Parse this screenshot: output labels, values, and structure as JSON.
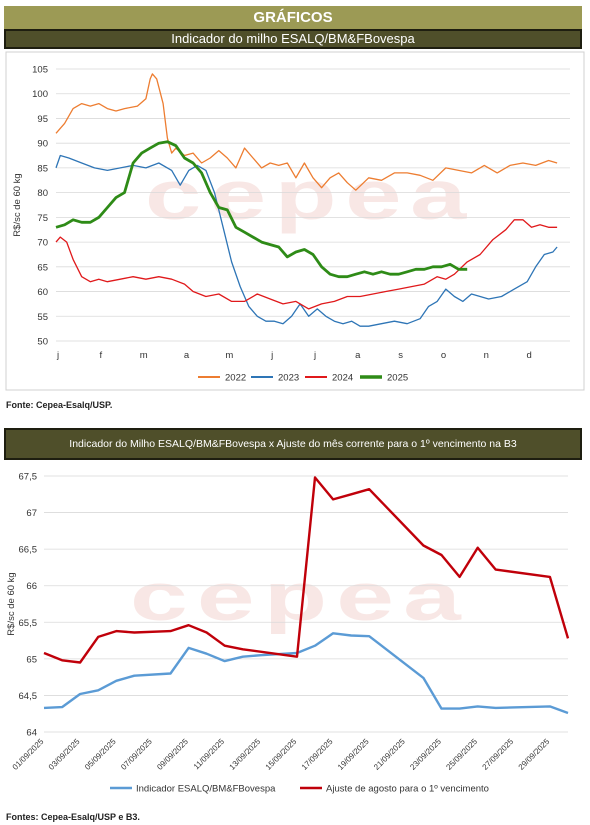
{
  "header": {
    "title": "GRÁFICOS"
  },
  "colors": {
    "band": "#9c9a55",
    "head": "#4f4f2a",
    "grid": "#d9d9d9",
    "s2022": "#ed7d31",
    "s2023": "#2e75b6",
    "s2024": "#e0191b",
    "s2025": "#2e8b17",
    "indicator": "#5b9bd5",
    "adjustment": "#c0000a",
    "watermark": "#f2d3cf"
  },
  "watermark": "cepea",
  "chart_data": [
    {
      "type": "line",
      "title": "Indicador do milho ESALQ/BM&FBovespa",
      "ylabel": "R$/sc de 60 kg",
      "ylim": [
        50,
        105
      ],
      "yticks": [
        50,
        55,
        60,
        65,
        70,
        75,
        80,
        85,
        90,
        95,
        100,
        105
      ],
      "categories": [
        "j",
        "f",
        "m",
        "a",
        "m",
        "j",
        "j",
        "a",
        "s",
        "o",
        "n",
        "d"
      ],
      "xlim": [
        0,
        12
      ],
      "grid": true,
      "legend": "bottom",
      "series": [
        {
          "name": "2022",
          "x": [
            0,
            0.2,
            0.4,
            0.6,
            0.8,
            1.0,
            1.2,
            1.4,
            1.6,
            1.9,
            2.1,
            2.2,
            2.25,
            2.35,
            2.5,
            2.6,
            2.7,
            2.8,
            3.0,
            3.2,
            3.4,
            3.6,
            3.8,
            4.0,
            4.2,
            4.4,
            4.6,
            4.8,
            5.0,
            5.2,
            5.4,
            5.6,
            5.8,
            6.0,
            6.2,
            6.4,
            6.6,
            6.8,
            7.0,
            7.3,
            7.6,
            7.9,
            8.2,
            8.5,
            8.8,
            9.1,
            9.4,
            9.7,
            10.0,
            10.3,
            10.6,
            10.9,
            11.2,
            11.5,
            11.7
          ],
          "values": [
            92,
            94,
            97,
            98,
            97.5,
            98,
            97,
            96.5,
            97,
            97.5,
            99,
            103,
            104,
            103,
            98,
            91,
            88,
            89,
            87.5,
            88,
            86,
            87,
            88.5,
            87,
            85,
            89,
            87,
            85,
            86,
            85.5,
            86,
            83,
            86,
            83,
            81,
            83,
            84,
            82,
            80.5,
            83,
            82.5,
            84,
            84,
            83.5,
            82.5,
            85,
            84.5,
            84,
            85.5,
            84,
            85.5,
            86,
            85.5,
            86.5,
            86
          ]
        },
        {
          "name": "2023",
          "x": [
            0,
            0.1,
            0.3,
            0.6,
            0.9,
            1.2,
            1.5,
            1.8,
            2.1,
            2.4,
            2.7,
            2.9,
            3.1,
            3.3,
            3.5,
            3.7,
            3.9,
            4.1,
            4.3,
            4.5,
            4.7,
            4.9,
            5.1,
            5.3,
            5.5,
            5.7,
            5.9,
            6.1,
            6.3,
            6.5,
            6.7,
            6.9,
            7.1,
            7.3,
            7.6,
            7.9,
            8.2,
            8.5,
            8.7,
            8.9,
            9.1,
            9.3,
            9.5,
            9.7,
            9.9,
            10.1,
            10.4,
            10.7,
            11.0,
            11.2,
            11.4,
            11.6,
            11.7
          ],
          "values": [
            85,
            87.5,
            87,
            86,
            85,
            84.5,
            85,
            85.5,
            85,
            86,
            84.5,
            81.5,
            84.5,
            85.5,
            84.5,
            80,
            73,
            66,
            61,
            57,
            55,
            54,
            54,
            53.5,
            55,
            57.5,
            55,
            56.5,
            55,
            54,
            53.5,
            54,
            53,
            53,
            53.5,
            54,
            53.5,
            54.5,
            57,
            58,
            60.5,
            59,
            58,
            59.5,
            59,
            58.5,
            59,
            60.5,
            62,
            65,
            67.5,
            68,
            69
          ]
        },
        {
          "name": "2024",
          "x": [
            0,
            0.1,
            0.25,
            0.4,
            0.6,
            0.8,
            1.0,
            1.2,
            1.5,
            1.8,
            2.1,
            2.4,
            2.7,
            3.0,
            3.2,
            3.5,
            3.8,
            4.1,
            4.4,
            4.7,
            5.0,
            5.3,
            5.6,
            5.9,
            6.2,
            6.5,
            6.8,
            7.1,
            7.4,
            7.7,
            8.0,
            8.3,
            8.6,
            8.9,
            9.1,
            9.3,
            9.6,
            9.9,
            10.2,
            10.5,
            10.7,
            10.9,
            11.1,
            11.3,
            11.5,
            11.7
          ],
          "values": [
            70,
            71,
            70,
            66.5,
            63,
            62,
            62.5,
            62,
            62.5,
            63,
            62.5,
            63,
            62.5,
            61.5,
            60,
            59,
            59.5,
            58,
            58,
            59.5,
            58.5,
            57.5,
            58,
            56.5,
            57.5,
            58,
            59,
            59,
            59.5,
            60,
            60.5,
            61,
            61.5,
            63,
            62.5,
            63.5,
            66,
            67.5,
            70.5,
            72.5,
            74.5,
            74.5,
            73,
            73.5,
            73,
            73
          ]
        },
        {
          "name": "2025",
          "x": [
            0,
            0.2,
            0.4,
            0.6,
            0.8,
            1.0,
            1.2,
            1.4,
            1.6,
            1.8,
            2.0,
            2.2,
            2.4,
            2.6,
            2.8,
            3.0,
            3.2,
            3.4,
            3.6,
            3.8,
            4.0,
            4.2,
            4.4,
            4.6,
            4.8,
            5.0,
            5.2,
            5.4,
            5.6,
            5.8,
            6.0,
            6.2,
            6.4,
            6.6,
            6.8,
            7.0,
            7.2,
            7.4,
            7.6,
            7.8,
            8.0,
            8.2,
            8.4,
            8.6,
            8.8,
            9.0,
            9.2,
            9.4,
            9.5,
            9.6
          ],
          "values": [
            73,
            73.5,
            74.5,
            74,
            74,
            75,
            77,
            79,
            80,
            86,
            88,
            89,
            90,
            90.3,
            89.5,
            87,
            86,
            84,
            80,
            77,
            76.5,
            73,
            72,
            71,
            70,
            69.5,
            69,
            67,
            68,
            68.5,
            67.5,
            65,
            63.5,
            63,
            63,
            63.5,
            64,
            63.5,
            64,
            63.5,
            63.5,
            64,
            64.5,
            64.5,
            65,
            65,
            65.5,
            64.5,
            64.5,
            64.5
          ]
        }
      ]
    },
    {
      "type": "line",
      "title": "Indicador do Milho ESALQ/BM&FBovespa x Ajuste do mês corrente para o 1º vencimento na B3",
      "ylabel": "R$/sc de 60 kg",
      "ylim": [
        64,
        67.5
      ],
      "yticks": [
        "64",
        "64,5",
        "65",
        "65,5",
        "66",
        "66,5",
        "67",
        "67,5"
      ],
      "ytick_values": [
        64,
        64.5,
        65,
        65.5,
        66,
        66.5,
        67,
        67.5
      ],
      "categories": [
        "01/09/2025",
        "03/09/2025",
        "05/09/2025",
        "07/09/2025",
        "09/09/2025",
        "11/09/2025",
        "13/09/2025",
        "15/09/2025",
        "17/09/2025",
        "19/09/2025",
        "21/09/2025",
        "23/09/2025",
        "25/09/2025",
        "27/09/2025",
        "29/09/2025"
      ],
      "xlim": [
        1,
        30
      ],
      "grid": true,
      "legend": "bottom",
      "series": [
        {
          "name": "Indicador ESALQ/BM&FBovespa",
          "x": [
            1,
            2,
            3,
            4,
            5,
            6,
            8,
            9,
            10,
            11,
            12,
            13,
            15,
            16,
            17,
            18,
            19,
            22,
            23,
            24,
            25,
            26,
            29,
            30
          ],
          "values": [
            64.33,
            64.34,
            64.52,
            64.57,
            64.7,
            64.77,
            64.8,
            65.15,
            65.07,
            64.97,
            65.03,
            65.05,
            65.08,
            65.18,
            65.35,
            65.32,
            65.31,
            64.74,
            64.32,
            64.32,
            64.35,
            64.33,
            64.35,
            64.26
          ]
        },
        {
          "name": "Ajuste de agosto para o 1º vencimento",
          "x": [
            1,
            2,
            3,
            4,
            5,
            6,
            8,
            9,
            10,
            11,
            12,
            15,
            16,
            17,
            18,
            19,
            22,
            23,
            24,
            25,
            26,
            29,
            30
          ],
          "values": [
            65.08,
            64.98,
            64.95,
            65.3,
            65.38,
            65.36,
            65.38,
            65.46,
            65.36,
            65.18,
            65.13,
            65.03,
            67.48,
            67.18,
            67.25,
            67.32,
            66.55,
            66.42,
            66.12,
            66.52,
            66.22,
            66.12,
            65.28
          ]
        }
      ]
    }
  ],
  "sources": {
    "chart1": "Fonte: Cepea-Esalq/USP.",
    "chart2": "Fontes: Cepea-Esalq/USP e B3."
  }
}
